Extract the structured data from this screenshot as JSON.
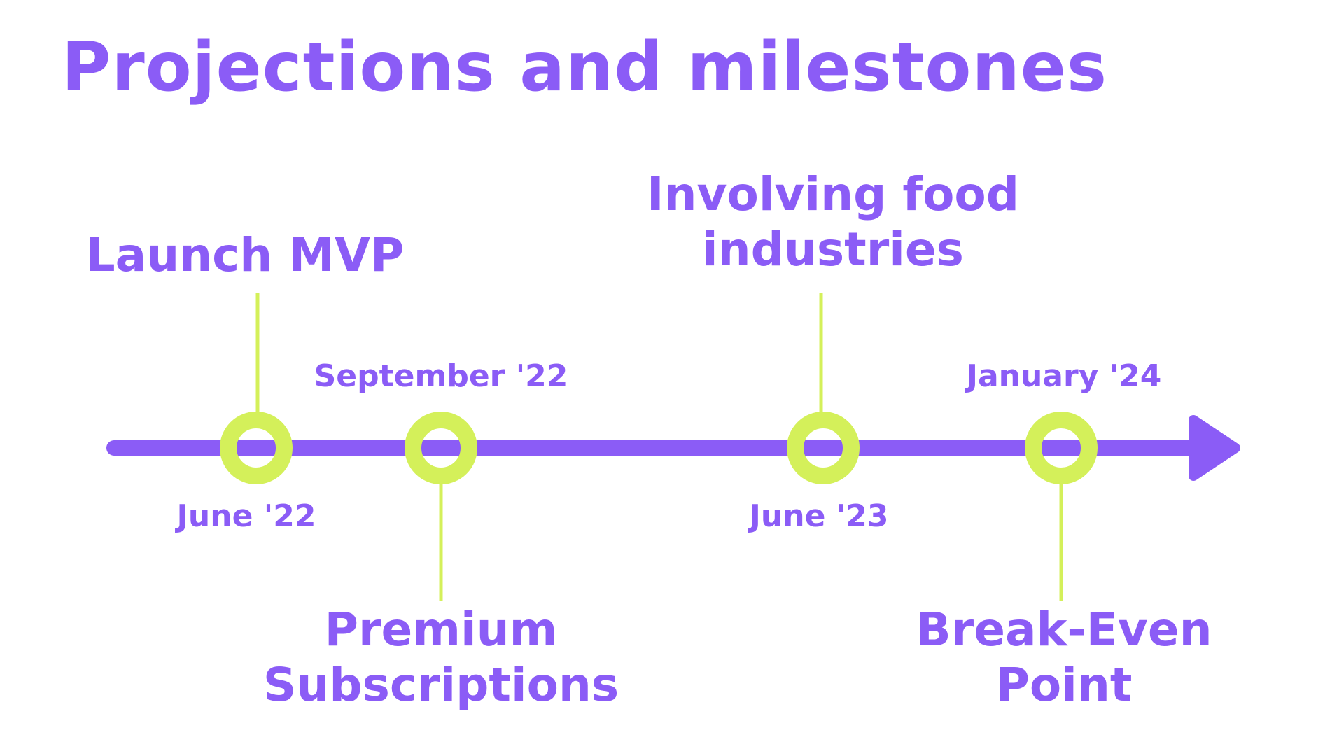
{
  "title": "Projections and milestones",
  "colors": {
    "primary": "#8b5cf6",
    "accent": "#d4f05a",
    "background": "#ffffff"
  },
  "milestones": [
    {
      "label": "Launch MVP",
      "date": "June '22",
      "label_position": "above",
      "date_position": "below"
    },
    {
      "label": "Premium Subscriptions",
      "date": "September '22",
      "label_position": "below",
      "date_position": "above"
    },
    {
      "label": "Involving food industries",
      "date": "June '23",
      "label_position": "above",
      "date_position": "below"
    },
    {
      "label": "Break-Even Point",
      "date": "January '24",
      "label_position": "below",
      "date_position": "above"
    }
  ],
  "labels_display": {
    "launch": [
      "Launch MVP"
    ],
    "premium": [
      "Premium",
      "Subscriptions"
    ],
    "food": [
      "Involving food",
      "industries"
    ],
    "break_even": [
      "Break-Even",
      "Point"
    ]
  }
}
